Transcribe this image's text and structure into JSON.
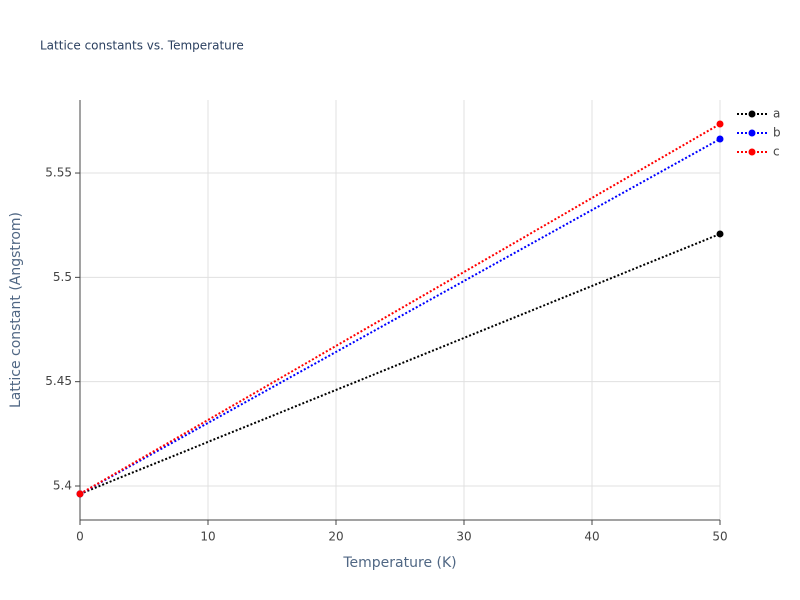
{
  "chart_data": {
    "type": "line",
    "title": "Lattice constants vs. Temperature",
    "x_label": "Temperature (K)",
    "y_label": "Lattice constant (Angstrom)",
    "x": [
      0,
      50
    ],
    "series": [
      {
        "name": "a",
        "color": "#000000",
        "values": [
          5.3962,
          5.5208
        ]
      },
      {
        "name": "b",
        "color": "#0000ff",
        "values": [
          5.3962,
          5.5663
        ]
      },
      {
        "name": "c",
        "color": "#ff0000",
        "values": [
          5.3962,
          5.5735
        ]
      }
    ],
    "xlim": [
      0,
      50
    ],
    "xticks": [
      0,
      10,
      20,
      30,
      40,
      50
    ],
    "ylim": [
      5.3837,
      5.585
    ],
    "yticks": [
      {
        "value": 5.4,
        "label": "5.4"
      },
      {
        "value": 5.45,
        "label": "5.45"
      },
      {
        "value": 5.5,
        "label": "5.5"
      },
      {
        "value": 5.55,
        "label": "5.55"
      }
    ],
    "grid": true
  }
}
